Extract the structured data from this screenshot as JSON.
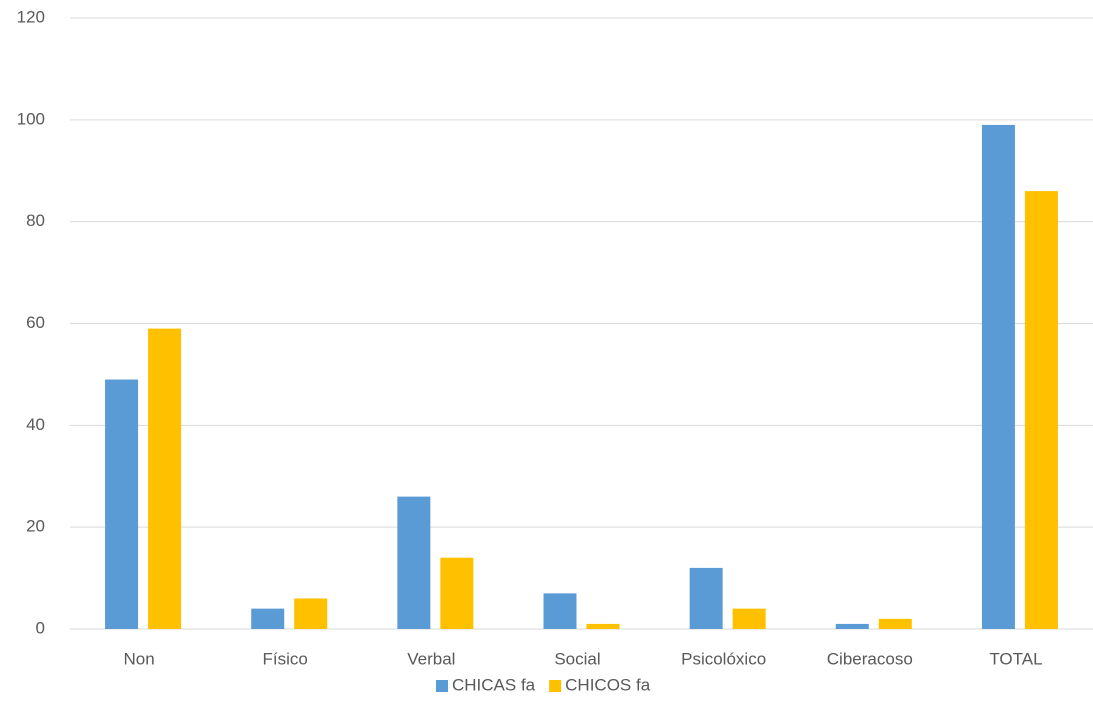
{
  "chart_data": {
    "type": "bar",
    "categories": [
      "Non",
      "Físico",
      "Verbal",
      "Social",
      "Psicolóxico",
      "Ciberacoso",
      "TOTAL"
    ],
    "series": [
      {
        "name": "CHICAS fa",
        "color": "#5b9bd5",
        "values": [
          49,
          4,
          26,
          7,
          12,
          1,
          99
        ]
      },
      {
        "name": "CHICOS fa",
        "color": "#ffc000",
        "values": [
          59,
          6,
          14,
          1,
          4,
          2,
          86
        ]
      }
    ],
    "ylim": [
      0,
      120
    ],
    "yticks": [
      0,
      20,
      40,
      60,
      80,
      100,
      120
    ],
    "grid": true,
    "legend": "bottom"
  }
}
